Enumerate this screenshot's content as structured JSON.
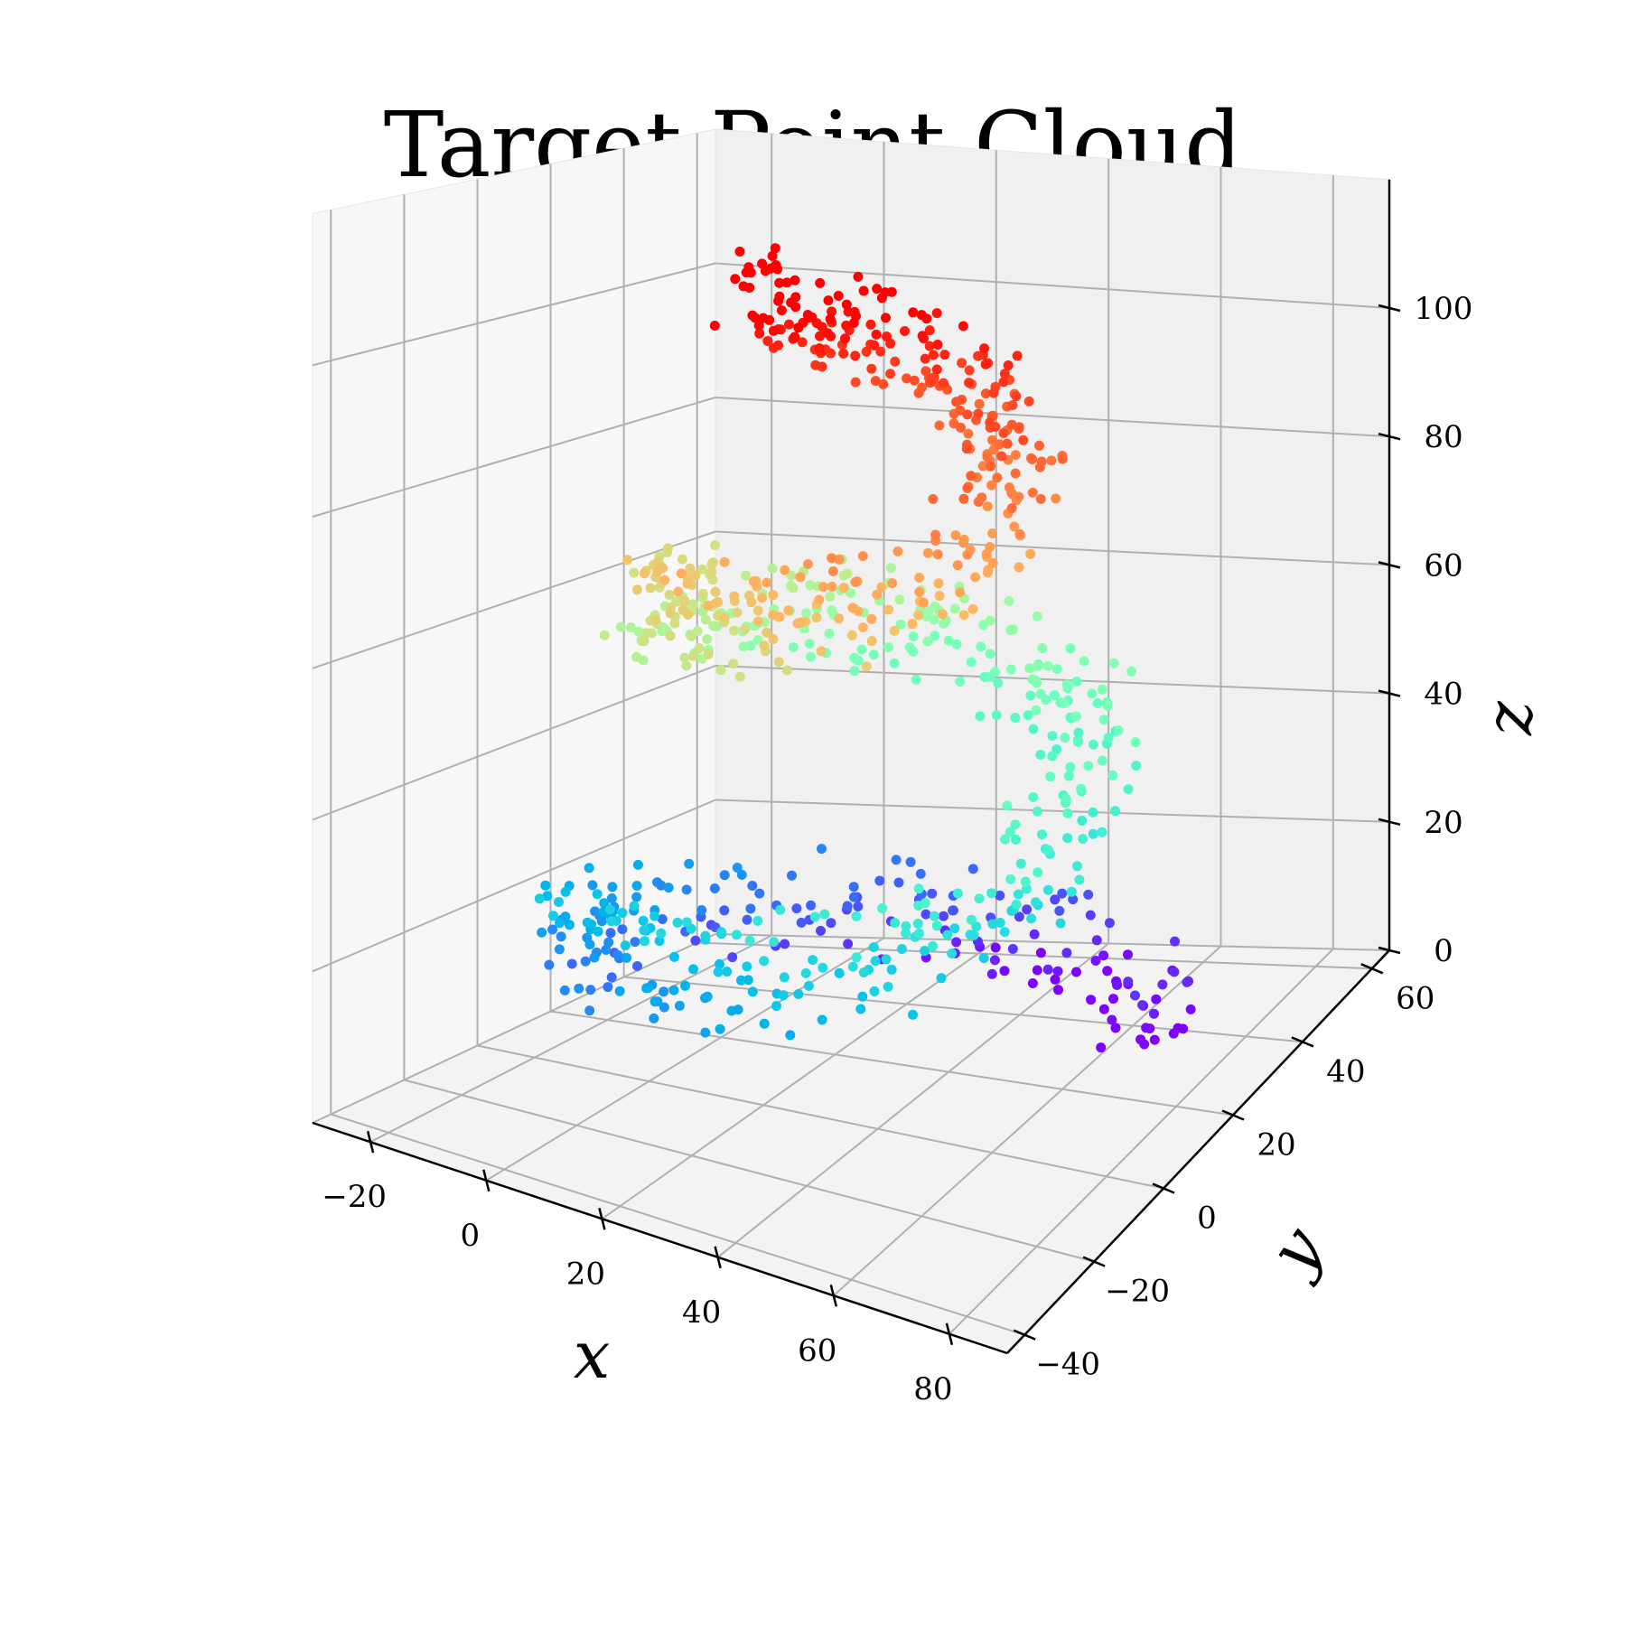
{
  "chart_data": {
    "type": "scatter",
    "projection": "3d",
    "title": "Target Point Cloud",
    "xlabel": "x",
    "ylabel": "y",
    "zlabel": "z",
    "xlim": [
      -30,
      90
    ],
    "ylim": [
      -45,
      65
    ],
    "zlim": [
      0,
      120
    ],
    "xticks": [
      -20,
      0,
      20,
      40,
      60,
      80
    ],
    "yticks": [
      -40,
      -20,
      0,
      20,
      40,
      60
    ],
    "zticks": [
      0,
      20,
      40,
      60,
      80,
      100
    ],
    "xtick_labels": [
      "−20",
      "0",
      "20",
      "40",
      "60",
      "80"
    ],
    "ytick_labels": [
      "−40",
      "−20",
      "0",
      "20",
      "40",
      "60"
    ],
    "ztick_labels": [
      "0",
      "20",
      "40",
      "60",
      "80",
      "100"
    ],
    "grid": true,
    "colormap": "rainbow",
    "color_by": "z",
    "n_points": 900,
    "helix": {
      "center_x": 30,
      "center_y": 10,
      "radius_start": 45,
      "radius_end": 20,
      "z_start": 0,
      "z_end": 110,
      "turns": 2.4
    }
  }
}
